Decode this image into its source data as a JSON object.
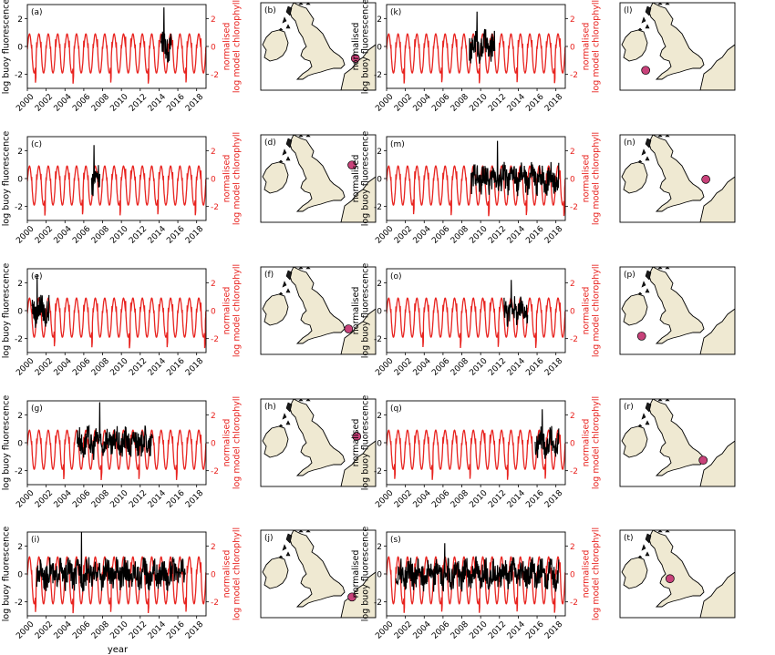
{
  "figure": {
    "y_left_label_line1": "normalised",
    "y_left_label_line2": "log buoy fluorescence",
    "y_right_label_line1": "normalised",
    "y_right_label_line2": "log model chlorophyll",
    "x_label": "year",
    "x_ticks": [
      "2000",
      "2002",
      "2004",
      "2006",
      "2008",
      "2010",
      "2012",
      "2014",
      "2016",
      "2018"
    ],
    "y_ticks": [
      "-2",
      "0",
      "2"
    ],
    "colors": {
      "model": "#e8231f",
      "buoy": "#000000",
      "buoy_site": "#c8427a",
      "land": "#efe9d2",
      "sea": "#ffffff"
    }
  },
  "chart_data": [
    {
      "type": "line",
      "panel": "(a)",
      "map_label": "(b)",
      "xlim": [
        2000,
        2019
      ],
      "ylim": [
        -3,
        3
      ],
      "model": {
        "amplitude": 1.0,
        "mean": -0.2
      },
      "buoy": {
        "start": 2014.2,
        "end": 2015.3,
        "peak": 2.8
      },
      "site": {
        "lon": 3.0,
        "lat": 53.0
      }
    },
    {
      "type": "line",
      "panel": "(c)",
      "map_label": "(d)",
      "xlim": [
        2000,
        2019
      ],
      "ylim": [
        -3,
        3
      ],
      "model": {
        "amplitude": 1.0,
        "mean": -0.2
      },
      "buoy": {
        "start": 2006.8,
        "end": 2007.7,
        "peak": 2.4
      },
      "site": {
        "lon": 2.5,
        "lat": 56.2
      }
    },
    {
      "type": "line",
      "panel": "(e)",
      "map_label": "(f)",
      "xlim": [
        2000,
        2019
      ],
      "ylim": [
        -3,
        3
      ],
      "model": {
        "amplitude": 1.0,
        "mean": -0.2
      },
      "buoy": {
        "start": 2000.5,
        "end": 2002.3,
        "peak": 2.6
      },
      "site": {
        "lon": 2.0,
        "lat": 52.2
      }
    },
    {
      "type": "line",
      "panel": "(g)",
      "map_label": "(h)",
      "xlim": [
        2000,
        2019
      ],
      "ylim": [
        -3,
        3
      ],
      "model": {
        "amplitude": 1.0,
        "mean": -0.2
      },
      "buoy": {
        "start": 2005.3,
        "end": 2013.3,
        "peak": 2.9
      },
      "site": {
        "lon": 3.2,
        "lat": 55.3
      }
    },
    {
      "type": "line",
      "panel": "(i)",
      "map_label": "(j)",
      "xlim": [
        2000,
        2019
      ],
      "ylim": [
        -3,
        3
      ],
      "model": {
        "amplitude": 1.2,
        "mean": -0.1
      },
      "buoy": {
        "start": 2001.0,
        "end": 2016.8,
        "peak": 3.0
      },
      "site": {
        "lon": 2.5,
        "lat": 51.6
      }
    },
    {
      "type": "line",
      "panel": "(k)",
      "map_label": "(l)",
      "xlim": [
        2000,
        2019
      ],
      "ylim": [
        -3,
        3
      ],
      "model": {
        "amplitude": 1.0,
        "mean": -0.2
      },
      "buoy": {
        "start": 2008.8,
        "end": 2011.5,
        "peak": 2.5
      },
      "site": {
        "lon": -7.2,
        "lat": 51.5
      }
    },
    {
      "type": "line",
      "panel": "(m)",
      "map_label": "(n)",
      "xlim": [
        2000,
        2019
      ],
      "ylim": [
        -3,
        3
      ],
      "model": {
        "amplitude": 1.0,
        "mean": -0.2
      },
      "buoy": {
        "start": 2009.0,
        "end": 2018.3,
        "peak": 2.7
      },
      "site": {
        "lon": 1.7,
        "lat": 54.4
      }
    },
    {
      "type": "line",
      "panel": "(o)",
      "map_label": "(p)",
      "xlim": [
        2000,
        2019
      ],
      "ylim": [
        -3,
        3
      ],
      "model": {
        "amplitude": 1.0,
        "mean": -0.2
      },
      "buoy": {
        "start": 2012.5,
        "end": 2015.0,
        "peak": 2.2
      },
      "site": {
        "lon": -7.8,
        "lat": 51.3
      }
    },
    {
      "type": "line",
      "panel": "(q)",
      "map_label": "(r)",
      "xlim": [
        2000,
        2019
      ],
      "ylim": [
        -3,
        3
      ],
      "model": {
        "amplitude": 1.0,
        "mean": -0.2
      },
      "buoy": {
        "start": 2015.8,
        "end": 2018.3,
        "peak": 2.4
      },
      "site": {
        "lon": 1.3,
        "lat": 52.3
      }
    },
    {
      "type": "line",
      "panel": "(s)",
      "map_label": "(t)",
      "xlim": [
        2000,
        2019
      ],
      "ylim": [
        -3,
        3
      ],
      "model": {
        "amplitude": 1.2,
        "mean": -0.1
      },
      "buoy": {
        "start": 2001.0,
        "end": 2018.3,
        "peak": 2.2
      },
      "site": {
        "lon": -3.6,
        "lat": 53.9
      }
    }
  ]
}
